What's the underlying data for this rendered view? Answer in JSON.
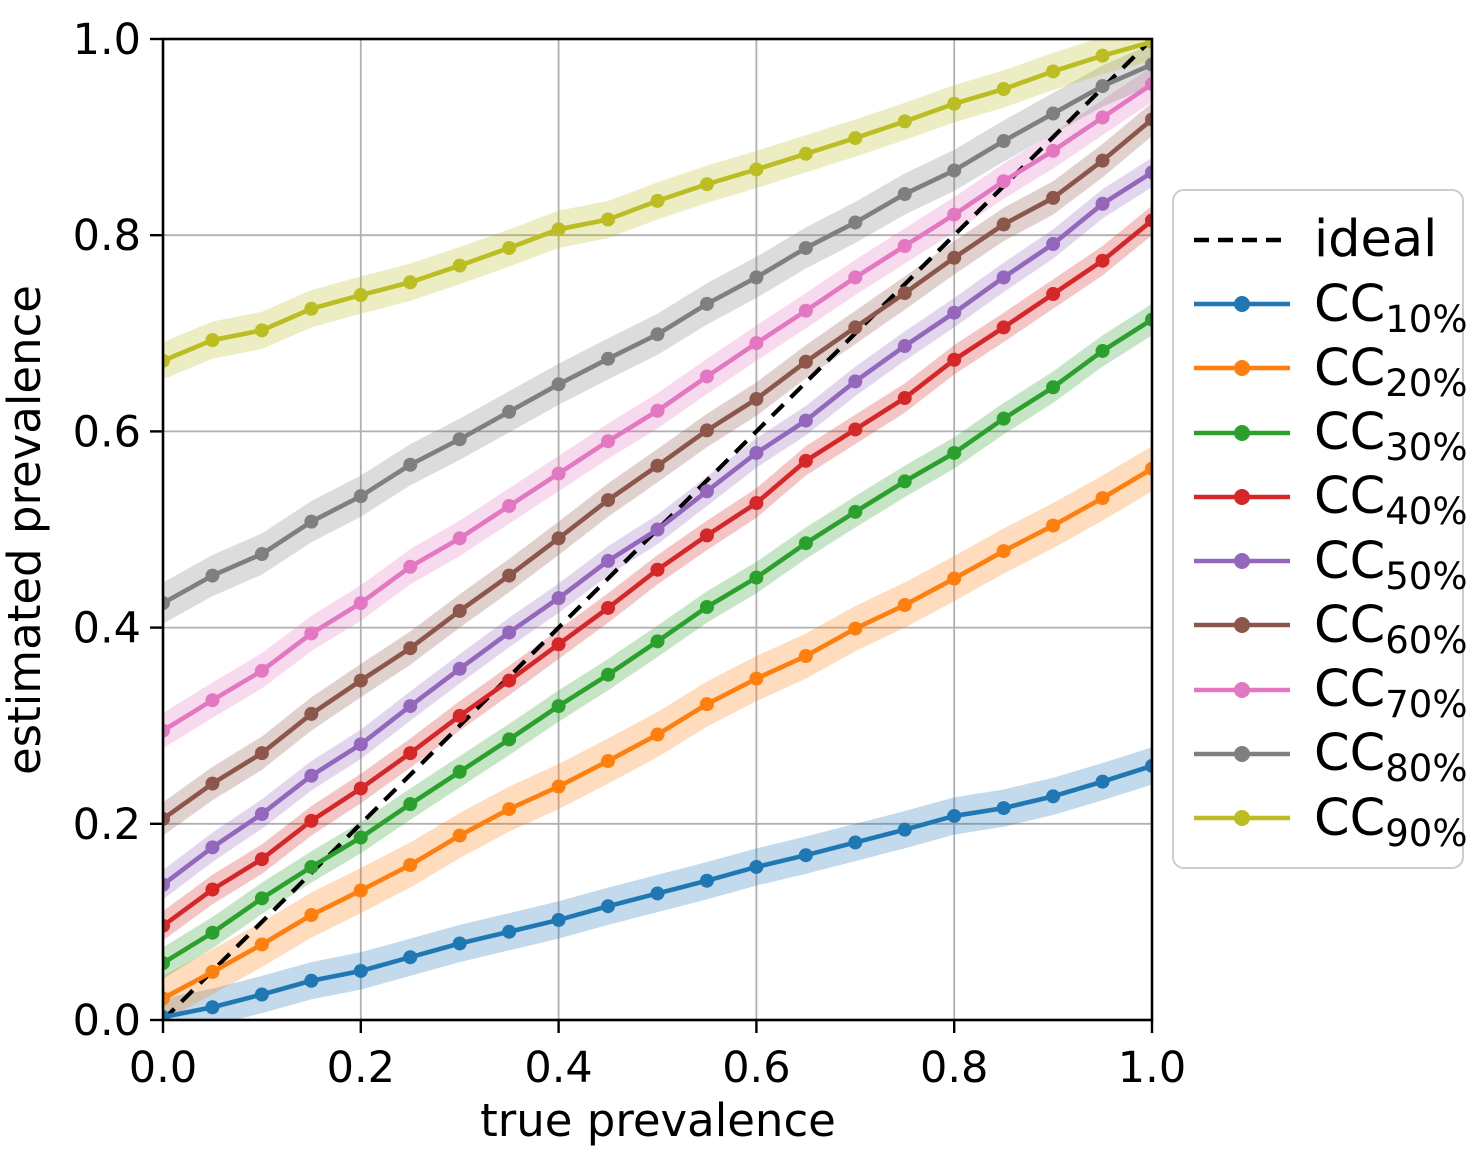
{
  "figure": {
    "background": "#ffffff",
    "grid_color": "#b0b0b0",
    "spine_color": "#000000"
  },
  "chart_data": {
    "type": "line",
    "title": "",
    "xlabel": "true prevalence",
    "ylabel": "estimated prevalence",
    "xlim": [
      0.0,
      1.0
    ],
    "ylim": [
      0.0,
      1.0
    ],
    "grid": true,
    "legend_position": "right-outside",
    "x_ticks": {
      "values": [
        0.0,
        0.2,
        0.4,
        0.6,
        0.8,
        1.0
      ],
      "labels": [
        "0.0",
        "0.2",
        "0.4",
        "0.6",
        "0.8",
        "1.0"
      ]
    },
    "y_ticks": {
      "values": [
        0.0,
        0.2,
        0.4,
        0.6,
        0.8,
        1.0
      ],
      "labels": [
        "0.0",
        "0.2",
        "0.4",
        "0.6",
        "0.8",
        "1.0"
      ]
    },
    "x": [
      0.0,
      0.05,
      0.1,
      0.15,
      0.2,
      0.25,
      0.3,
      0.35,
      0.4,
      0.45,
      0.5,
      0.55,
      0.6,
      0.65,
      0.7,
      0.75,
      0.8,
      0.85,
      0.9,
      0.95,
      1.0
    ],
    "ideal": {
      "label": "ideal",
      "style": "dashed",
      "color": "#000000",
      "x": [
        0.0,
        1.0
      ],
      "y": [
        0.0,
        1.0
      ]
    },
    "series": [
      {
        "label_main": "CC",
        "label_sub": "10%",
        "color": "#1f77b4",
        "band_halfwidth": 0.019,
        "values": [
          0.003,
          0.013,
          0.026,
          0.04,
          0.05,
          0.064,
          0.078,
          0.09,
          0.102,
          0.116,
          0.129,
          0.142,
          0.156,
          0.168,
          0.181,
          0.194,
          0.208,
          0.216,
          0.228,
          0.243,
          0.259
        ]
      },
      {
        "label_main": "CC",
        "label_sub": "20%",
        "color": "#ff7f0e",
        "band_halfwidth": 0.023,
        "values": [
          0.022,
          0.049,
          0.077,
          0.107,
          0.132,
          0.158,
          0.188,
          0.215,
          0.238,
          0.264,
          0.291,
          0.322,
          0.348,
          0.371,
          0.399,
          0.423,
          0.45,
          0.478,
          0.504,
          0.532,
          0.562
        ]
      },
      {
        "label_main": "CC",
        "label_sub": "30%",
        "color": "#2ca02c",
        "band_halfwidth": 0.016,
        "values": [
          0.058,
          0.089,
          0.124,
          0.156,
          0.186,
          0.22,
          0.253,
          0.286,
          0.32,
          0.352,
          0.386,
          0.421,
          0.451,
          0.486,
          0.518,
          0.549,
          0.578,
          0.613,
          0.645,
          0.682,
          0.714
        ]
      },
      {
        "label_main": "CC",
        "label_sub": "40%",
        "color": "#d62728",
        "band_halfwidth": 0.015,
        "values": [
          0.096,
          0.133,
          0.164,
          0.203,
          0.236,
          0.272,
          0.31,
          0.346,
          0.383,
          0.42,
          0.459,
          0.494,
          0.527,
          0.57,
          0.602,
          0.634,
          0.673,
          0.706,
          0.74,
          0.774,
          0.815
        ]
      },
      {
        "label_main": "CC",
        "label_sub": "50%",
        "color": "#9467bd",
        "band_halfwidth": 0.015,
        "values": [
          0.138,
          0.176,
          0.21,
          0.249,
          0.281,
          0.32,
          0.358,
          0.395,
          0.43,
          0.468,
          0.5,
          0.539,
          0.578,
          0.611,
          0.651,
          0.687,
          0.721,
          0.757,
          0.791,
          0.832,
          0.864
        ]
      },
      {
        "label_main": "CC",
        "label_sub": "60%",
        "color": "#8c564b",
        "band_halfwidth": 0.017,
        "values": [
          0.205,
          0.241,
          0.272,
          0.312,
          0.346,
          0.379,
          0.417,
          0.453,
          0.491,
          0.53,
          0.565,
          0.601,
          0.633,
          0.671,
          0.706,
          0.741,
          0.777,
          0.811,
          0.838,
          0.876,
          0.918
        ]
      },
      {
        "label_main": "CC",
        "label_sub": "70%",
        "color": "#e377c2",
        "band_halfwidth": 0.018,
        "values": [
          0.295,
          0.326,
          0.356,
          0.394,
          0.425,
          0.462,
          0.491,
          0.524,
          0.557,
          0.59,
          0.621,
          0.656,
          0.69,
          0.723,
          0.757,
          0.789,
          0.821,
          0.855,
          0.886,
          0.92,
          0.954
        ]
      },
      {
        "label_main": "CC",
        "label_sub": "80%",
        "color": "#7f7f7f",
        "band_halfwidth": 0.021,
        "values": [
          0.425,
          0.453,
          0.475,
          0.508,
          0.534,
          0.566,
          0.592,
          0.62,
          0.648,
          0.674,
          0.699,
          0.73,
          0.757,
          0.787,
          0.813,
          0.842,
          0.866,
          0.896,
          0.924,
          0.952,
          0.974
        ]
      },
      {
        "label_main": "CC",
        "label_sub": "90%",
        "color": "#bcbd22",
        "band_halfwidth": 0.019,
        "values": [
          0.672,
          0.693,
          0.703,
          0.725,
          0.739,
          0.752,
          0.769,
          0.787,
          0.806,
          0.816,
          0.835,
          0.852,
          0.867,
          0.883,
          0.899,
          0.916,
          0.934,
          0.949,
          0.967,
          0.983,
          0.997
        ]
      }
    ]
  }
}
